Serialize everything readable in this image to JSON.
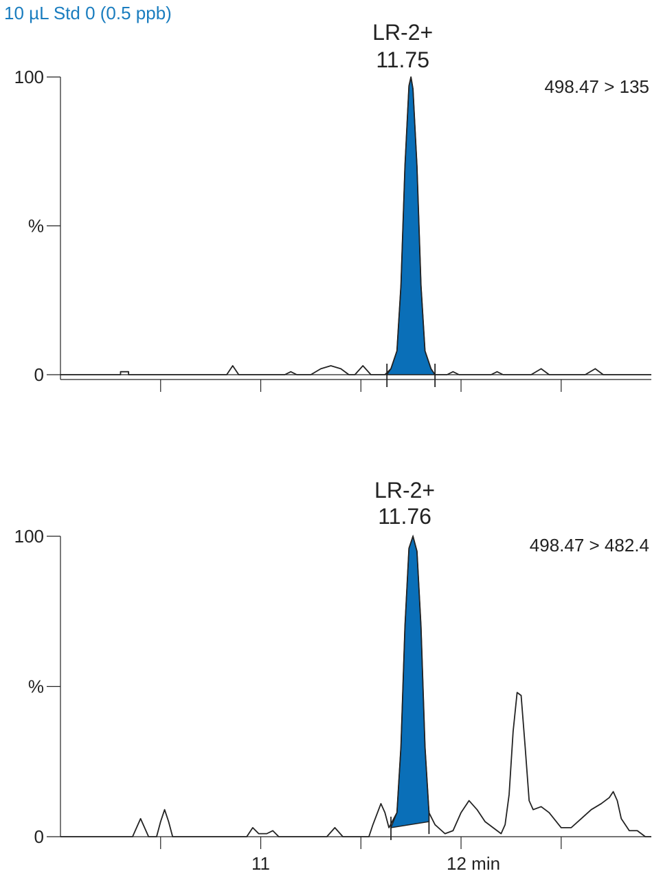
{
  "title": "10 µL Std 0 (0.5 ppb)",
  "colors": {
    "title": "#1a7dbf",
    "peak_fill": "#0a6fb8",
    "trace": "#222222"
  },
  "chart_data": [
    {
      "type": "line",
      "transition": "498.47 > 135",
      "ylabels": [
        "100",
        "%",
        "0"
      ],
      "ylim": [
        0,
        100
      ],
      "xlim": [
        10.0,
        12.95
      ],
      "x_ticks": [
        10.5,
        11.0,
        11.5,
        12.0,
        12.5
      ],
      "x_tick_labels": [],
      "peak": {
        "label": "LR-2+",
        "rt_label": "11.75",
        "rt": 11.75,
        "start": 11.63,
        "end": 11.87,
        "baseline_start": 0,
        "baseline_end": 0
      },
      "trace": [
        [
          10.0,
          0
        ],
        [
          10.3,
          0
        ],
        [
          10.3,
          1
        ],
        [
          10.34,
          1
        ],
        [
          10.34,
          0
        ],
        [
          10.83,
          0
        ],
        [
          10.86,
          3
        ],
        [
          10.89,
          0
        ],
        [
          11.12,
          0
        ],
        [
          11.15,
          1
        ],
        [
          11.18,
          0
        ],
        [
          11.25,
          0
        ],
        [
          11.3,
          2
        ],
        [
          11.35,
          3
        ],
        [
          11.4,
          2
        ],
        [
          11.44,
          0
        ],
        [
          11.47,
          0
        ],
        [
          11.51,
          3
        ],
        [
          11.55,
          0
        ],
        [
          11.62,
          0
        ],
        [
          11.65,
          2
        ],
        [
          11.68,
          8
        ],
        [
          11.7,
          30
        ],
        [
          11.72,
          70
        ],
        [
          11.74,
          97
        ],
        [
          11.75,
          100
        ],
        [
          11.76,
          96
        ],
        [
          11.78,
          70
        ],
        [
          11.8,
          30
        ],
        [
          11.82,
          8
        ],
        [
          11.85,
          2
        ],
        [
          11.87,
          0
        ],
        [
          11.93,
          0
        ],
        [
          11.96,
          1
        ],
        [
          11.99,
          0
        ],
        [
          12.15,
          0
        ],
        [
          12.18,
          1
        ],
        [
          12.21,
          0
        ],
        [
          12.35,
          0
        ],
        [
          12.4,
          2
        ],
        [
          12.44,
          0
        ],
        [
          12.62,
          0
        ],
        [
          12.67,
          2
        ],
        [
          12.71,
          0
        ],
        [
          12.95,
          0
        ]
      ]
    },
    {
      "type": "line",
      "transition": "498.47 > 482.4",
      "ylabels": [
        "100",
        "%",
        "0"
      ],
      "ylim": [
        0,
        100
      ],
      "xlim": [
        10.0,
        12.95
      ],
      "x_ticks": [
        10.5,
        11.0,
        11.5,
        12.0,
        12.5
      ],
      "x_tick_labels": [
        "11",
        "12 min"
      ],
      "peak": {
        "label": "LR-2+",
        "rt_label": "11.76",
        "rt": 11.76,
        "start": 11.65,
        "end": 11.84,
        "baseline_start": 3,
        "baseline_end": 5
      },
      "trace": [
        [
          10.0,
          0
        ],
        [
          10.36,
          0
        ],
        [
          10.38,
          3
        ],
        [
          10.4,
          6
        ],
        [
          10.42,
          3
        ],
        [
          10.44,
          0
        ],
        [
          10.48,
          0
        ],
        [
          10.5,
          5
        ],
        [
          10.52,
          9
        ],
        [
          10.54,
          5
        ],
        [
          10.56,
          0
        ],
        [
          10.93,
          0
        ],
        [
          10.96,
          3
        ],
        [
          10.99,
          1
        ],
        [
          11.03,
          1
        ],
        [
          11.06,
          2
        ],
        [
          11.09,
          0
        ],
        [
          11.33,
          0
        ],
        [
          11.37,
          3
        ],
        [
          11.41,
          0
        ],
        [
          11.54,
          0
        ],
        [
          11.56,
          4
        ],
        [
          11.6,
          11
        ],
        [
          11.62,
          8
        ],
        [
          11.64,
          3
        ],
        [
          11.68,
          8
        ],
        [
          11.7,
          30
        ],
        [
          11.72,
          70
        ],
        [
          11.74,
          96
        ],
        [
          11.76,
          100
        ],
        [
          11.78,
          95
        ],
        [
          11.8,
          70
        ],
        [
          11.82,
          30
        ],
        [
          11.84,
          8
        ],
        [
          11.87,
          4
        ],
        [
          11.92,
          1
        ],
        [
          11.96,
          2
        ],
        [
          12.0,
          8
        ],
        [
          12.04,
          12
        ],
        [
          12.08,
          9
        ],
        [
          12.12,
          5
        ],
        [
          12.16,
          3
        ],
        [
          12.2,
          1
        ],
        [
          12.22,
          4
        ],
        [
          12.24,
          14
        ],
        [
          12.26,
          35
        ],
        [
          12.28,
          48
        ],
        [
          12.3,
          47
        ],
        [
          12.32,
          30
        ],
        [
          12.34,
          12
        ],
        [
          12.36,
          9
        ],
        [
          12.4,
          10
        ],
        [
          12.44,
          8
        ],
        [
          12.5,
          3
        ],
        [
          12.55,
          3
        ],
        [
          12.6,
          6
        ],
        [
          12.65,
          9
        ],
        [
          12.7,
          11
        ],
        [
          12.74,
          13
        ],
        [
          12.76,
          15
        ],
        [
          12.78,
          12
        ],
        [
          12.8,
          6
        ],
        [
          12.84,
          2
        ],
        [
          12.88,
          2
        ],
        [
          12.92,
          0
        ],
        [
          12.95,
          0
        ]
      ]
    }
  ]
}
